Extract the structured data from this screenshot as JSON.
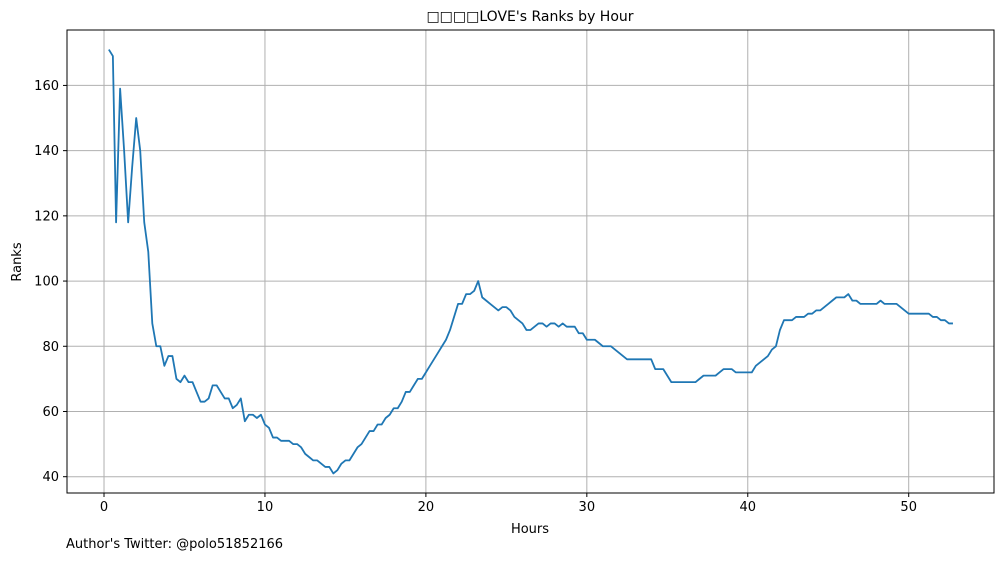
{
  "footer": {
    "credit": "Author's Twitter: @polo51852166"
  },
  "chart_data": {
    "type": "line",
    "title": "□□□□LOVE's Ranks by Hour",
    "xlabel": "Hours",
    "ylabel": "Ranks",
    "xlim": [
      -2.3,
      55.3
    ],
    "ylim": [
      35,
      177
    ],
    "xticks": [
      0,
      10,
      20,
      30,
      40,
      50
    ],
    "yticks": [
      40,
      60,
      80,
      100,
      120,
      140,
      160
    ],
    "grid": true,
    "line_color": "#1f77b4",
    "series": [
      {
        "x": [
          0.3,
          0.55,
          0.75,
          1.0,
          1.25,
          1.5,
          1.75,
          2.0,
          2.25,
          2.5,
          2.75,
          3.0,
          3.25,
          3.5,
          3.75,
          4.0,
          4.25,
          4.5,
          4.75,
          5.0,
          5.25,
          5.5,
          5.75,
          6.0,
          6.25,
          6.5,
          6.75,
          7.0,
          7.25,
          7.5,
          7.75,
          8.0,
          8.25,
          8.5,
          8.75,
          9.0,
          9.25,
          9.5,
          9.75,
          10.0,
          10.25,
          10.5,
          10.75,
          11.0,
          11.25,
          11.5,
          11.75,
          12.0,
          12.25,
          12.5,
          12.75,
          13.0,
          13.25,
          13.5,
          13.75,
          14.0,
          14.25,
          14.5,
          14.75,
          15.0,
          15.25,
          15.5,
          15.75,
          16.0,
          16.25,
          16.5,
          16.75,
          17.0,
          17.25,
          17.5,
          17.75,
          18.0,
          18.25,
          18.5,
          18.75,
          19.0,
          19.25,
          19.5,
          19.75,
          20.0,
          20.25,
          20.5,
          20.75,
          21.0,
          21.25,
          21.5,
          21.75,
          22.0,
          22.25,
          22.5,
          22.75,
          23.0,
          23.25,
          23.5,
          23.75,
          24.0,
          24.25,
          24.5,
          24.75,
          25.0,
          25.25,
          25.5,
          25.75,
          26.0,
          26.25,
          26.5,
          26.75,
          27.0,
          27.25,
          27.5,
          27.75,
          28.0,
          28.25,
          28.5,
          28.75,
          29.0,
          29.25,
          29.5,
          29.75,
          30.0,
          30.25,
          30.5,
          30.75,
          31.0,
          31.25,
          31.5,
          31.75,
          32.0,
          32.25,
          32.5,
          32.75,
          33.0,
          33.25,
          33.5,
          33.75,
          34.0,
          34.25,
          34.5,
          34.75,
          35.0,
          35.25,
          35.5,
          35.75,
          36.0,
          36.25,
          36.5,
          36.75,
          37.0,
          37.25,
          37.5,
          37.75,
          38.0,
          38.25,
          38.5,
          38.75,
          39.0,
          39.25,
          39.5,
          39.75,
          40.0,
          40.25,
          40.5,
          40.75,
          41.0,
          41.25,
          41.5,
          41.75,
          42.0,
          42.25,
          42.5,
          42.75,
          43.0,
          43.25,
          43.5,
          43.75,
          44.0,
          44.25,
          44.5,
          44.75,
          45.0,
          45.25,
          45.5,
          45.75,
          46.0,
          46.25,
          46.5,
          46.75,
          47.0,
          47.25,
          47.5,
          47.75,
          48.0,
          48.25,
          48.5,
          48.75,
          49.0,
          49.25,
          49.5,
          49.75,
          50.0,
          50.25,
          50.5,
          50.75,
          51.0,
          51.25,
          51.5,
          51.75,
          52.0,
          52.25,
          52.5,
          52.75
        ],
        "y": [
          171,
          169,
          118,
          159,
          140,
          118,
          135,
          150,
          140,
          118,
          109,
          87,
          80,
          80,
          74,
          77,
          77,
          70,
          69,
          71,
          69,
          69,
          66,
          63,
          63,
          64,
          68,
          68,
          66,
          64,
          64,
          61,
          62,
          64,
          57,
          59,
          59,
          58,
          59,
          56,
          55,
          52,
          52,
          51,
          51,
          51,
          50,
          50,
          49,
          47,
          46,
          45,
          45,
          44,
          43,
          43,
          41,
          42,
          44,
          45,
          45,
          47,
          49,
          50,
          52,
          54,
          54,
          56,
          56,
          58,
          59,
          61,
          61,
          63,
          66,
          66,
          68,
          70,
          70,
          72,
          74,
          76,
          78,
          80,
          82,
          85,
          89,
          93,
          93,
          96,
          96,
          97,
          100,
          95,
          94,
          93,
          92,
          91,
          92,
          92,
          91,
          89,
          88,
          87,
          85,
          85,
          86,
          87,
          87,
          86,
          87,
          87,
          86,
          87,
          86,
          86,
          86,
          84,
          84,
          82,
          82,
          82,
          81,
          80,
          80,
          80,
          79,
          78,
          77,
          76,
          76,
          76,
          76,
          76,
          76,
          76,
          73,
          73,
          73,
          71,
          69,
          69,
          69,
          69,
          69,
          69,
          69,
          70,
          71,
          71,
          71,
          71,
          72,
          73,
          73,
          73,
          72,
          72,
          72,
          72,
          72,
          74,
          75,
          76,
          77,
          79,
          80,
          85,
          88,
          88,
          88,
          89,
          89,
          89,
          90,
          90,
          91,
          91,
          92,
          93,
          94,
          95,
          95,
          95,
          96,
          94,
          94,
          93,
          93,
          93,
          93,
          93,
          94,
          93,
          93,
          93,
          93,
          92,
          91,
          90,
          90,
          90,
          90,
          90,
          90,
          89,
          89,
          88,
          88,
          87,
          87
        ]
      }
    ]
  }
}
